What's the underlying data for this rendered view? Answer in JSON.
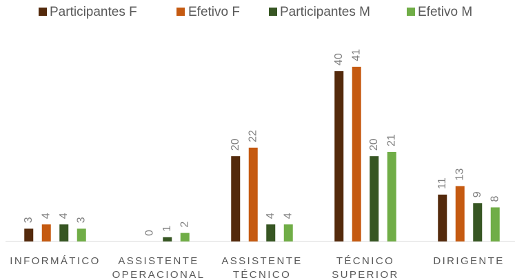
{
  "chart_data": {
    "type": "bar",
    "categories": [
      "INFORMÁTICO",
      "ASSISTENTE OPERACIONAL",
      "ASSISTENTE TÉCNICO",
      "TÉCNICO SUPERIOR",
      "DIRIGENTE"
    ],
    "series": [
      {
        "name": "Participantes  F",
        "color": "#542a0c",
        "values": [
          3,
          null,
          20,
          40,
          11
        ]
      },
      {
        "name": "Efetivo F",
        "color": "#c55a11",
        "values": [
          4,
          0,
          22,
          41,
          13
        ]
      },
      {
        "name": "Participantes  M",
        "color": "#375623",
        "values": [
          4,
          1,
          4,
          20,
          9
        ]
      },
      {
        "name": "Efetivo  M",
        "color": "#70ad47",
        "values": [
          3,
          2,
          4,
          21,
          8
        ]
      }
    ],
    "legend": "top"
  }
}
